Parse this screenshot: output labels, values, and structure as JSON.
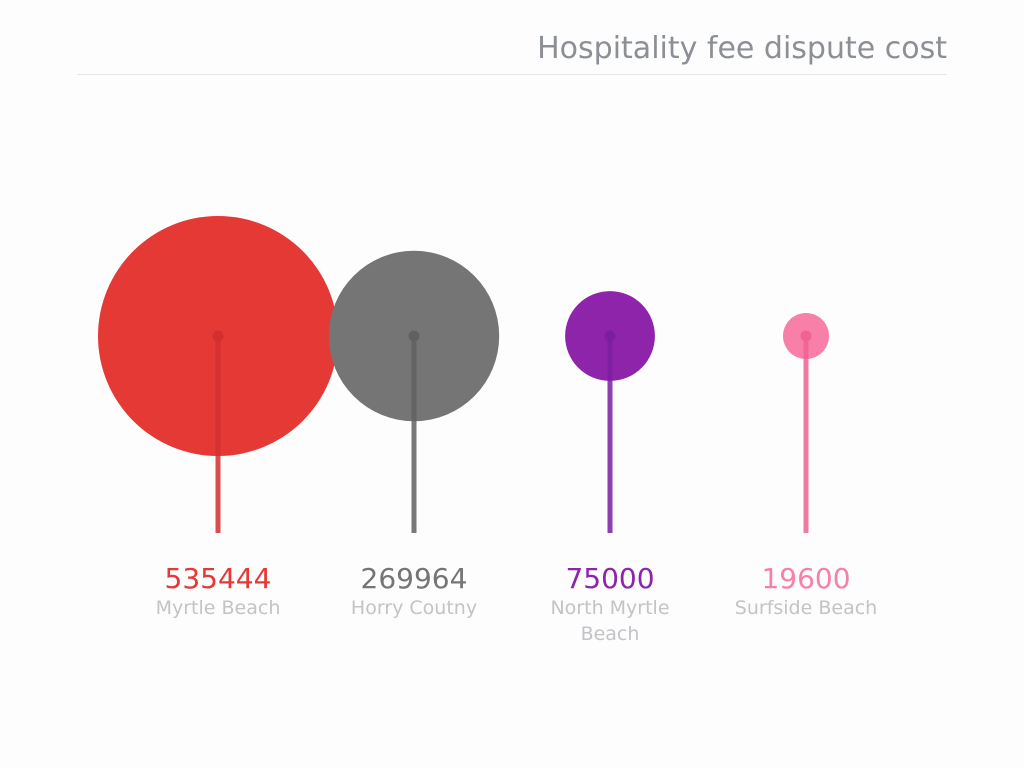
{
  "chart_data": {
    "type": "bubble-lollipop",
    "title": "Hospitality fee dispute cost",
    "categories": [
      "Myrtle Beach",
      "Horry Coutny",
      "North Myrtle Beach",
      "Surfside Beach"
    ],
    "values": [
      535444,
      269964,
      75000,
      19600
    ],
    "colors": [
      "#e53935",
      "#757575",
      "#8e24aa",
      "#f77fa8"
    ],
    "stem_colors": [
      "#d32f2f",
      "#616161",
      "#7b1fa2",
      "#f06292"
    ],
    "grid": false,
    "legend": "none"
  }
}
